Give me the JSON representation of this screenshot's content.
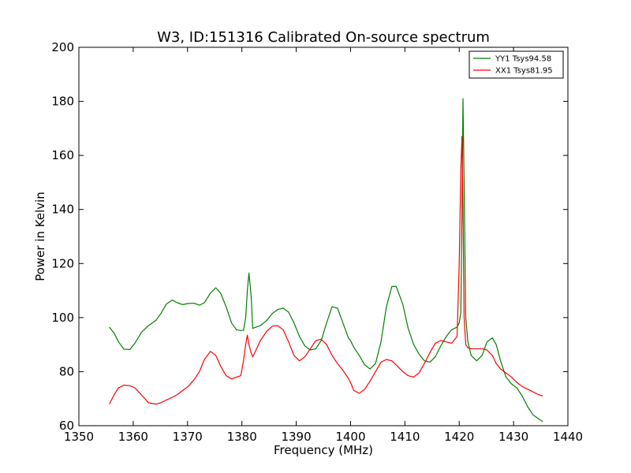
{
  "chart_data": {
    "type": "line",
    "title": "W3, ID:151316 Calibrated On-source spectrum",
    "xlabel": "Frequency (MHz)",
    "ylabel": "Power in Kelvin",
    "xlim": [
      1350,
      1440
    ],
    "ylim": [
      60,
      200
    ],
    "xticks": [
      1350,
      1360,
      1370,
      1380,
      1390,
      1400,
      1410,
      1420,
      1430,
      1440
    ],
    "yticks": [
      60,
      80,
      100,
      120,
      140,
      160,
      180,
      200
    ],
    "xtick_labels": [
      "1350",
      "1360",
      "1370",
      "1380",
      "1390",
      "1400",
      "1410",
      "1420",
      "1430",
      "1440"
    ],
    "ytick_labels": [
      "60",
      "80",
      "100",
      "120",
      "140",
      "160",
      "180",
      "200"
    ],
    "grid": false,
    "legend_position": "top-right",
    "series": [
      {
        "name": "YY1 Tsys94.58",
        "color": "#008000",
        "x": [
          1355.6,
          1356.5,
          1357.3,
          1358.3,
          1359.4,
          1360.3,
          1361.5,
          1362.8,
          1364.2,
          1365.1,
          1366.1,
          1367.2,
          1368.1,
          1369.1,
          1370.1,
          1371.2,
          1372.2,
          1373.1,
          1374.2,
          1375.2,
          1376.1,
          1377.1,
          1378.1,
          1379.0,
          1379.8,
          1380.3,
          1380.7,
          1381.0,
          1381.3,
          1381.7,
          1382.0,
          1382.6,
          1383.4,
          1384.6,
          1385.6,
          1386.6,
          1387.6,
          1388.6,
          1389.6,
          1390.6,
          1391.6,
          1392.6,
          1393.6,
          1394.6,
          1395.6,
          1396.6,
          1397.6,
          1398.6,
          1399.6,
          1400.0,
          1400.6,
          1401.6,
          1402.6,
          1403.6,
          1404.6,
          1405.6,
          1406.6,
          1407.6,
          1408.4,
          1409.6,
          1410.6,
          1411.6,
          1412.6,
          1413.6,
          1414.6,
          1415.6,
          1416.6,
          1417.6,
          1418.6,
          1419.6,
          1420.0,
          1420.3,
          1420.5,
          1420.7,
          1420.9,
          1421.2,
          1421.6,
          1422.2,
          1423.2,
          1424.2,
          1425.1,
          1426.1,
          1426.8,
          1427.6,
          1428.6,
          1429.6,
          1430.6,
          1431.6,
          1432.6,
          1433.6,
          1434.6,
          1435.4
        ],
        "y": [
          96.5,
          94.2,
          91.0,
          88.3,
          88.2,
          90.5,
          94.5,
          97.0,
          99.0,
          101.5,
          105.0,
          106.5,
          105.5,
          104.8,
          105.2,
          105.3,
          104.6,
          105.5,
          109.0,
          111.0,
          109.0,
          104.0,
          98.0,
          95.5,
          95.2,
          95.3,
          100.0,
          110.0,
          116.5,
          108.0,
          96.0,
          96.5,
          97.0,
          99.0,
          101.5,
          103.0,
          103.5,
          102.0,
          98.0,
          93.0,
          89.5,
          88.0,
          88.5,
          91.5,
          98.0,
          104.0,
          103.5,
          98.0,
          92.5,
          91.5,
          89.0,
          86.0,
          82.5,
          81.0,
          83.0,
          91.0,
          104.0,
          111.5,
          111.5,
          105.0,
          96.0,
          90.0,
          86.5,
          84.0,
          83.5,
          85.5,
          89.5,
          93.0,
          95.5,
          96.5,
          98.0,
          102.0,
          140.0,
          181.0,
          150.0,
          100.0,
          91.0,
          86.0,
          84.0,
          86.0,
          91.0,
          92.5,
          90.0,
          84.0,
          78.0,
          75.5,
          74.0,
          71.0,
          67.0,
          64.0,
          62.5,
          61.5
        ]
      },
      {
        "name": "XX1 Tsys81.95",
        "color": "#ff0000",
        "x": [
          1355.6,
          1356.5,
          1357.3,
          1358.3,
          1359.4,
          1360.3,
          1361.5,
          1362.8,
          1364.2,
          1365.1,
          1366.1,
          1367.2,
          1368.1,
          1369.1,
          1370.1,
          1371.2,
          1372.2,
          1373.1,
          1374.2,
          1375.2,
          1376.1,
          1377.1,
          1378.1,
          1379.0,
          1379.8,
          1380.3,
          1380.7,
          1381.0,
          1381.3,
          1381.7,
          1382.0,
          1382.6,
          1383.4,
          1384.6,
          1385.6,
          1386.6,
          1387.6,
          1388.6,
          1389.6,
          1390.6,
          1391.6,
          1392.6,
          1393.6,
          1394.6,
          1395.6,
          1396.6,
          1397.6,
          1398.6,
          1399.6,
          1400.0,
          1400.6,
          1401.6,
          1402.6,
          1403.6,
          1404.6,
          1405.6,
          1406.6,
          1407.6,
          1408.4,
          1409.6,
          1410.6,
          1411.6,
          1412.6,
          1413.6,
          1414.6,
          1415.6,
          1416.6,
          1417.6,
          1418.6,
          1419.6,
          1420.0,
          1420.3,
          1420.5,
          1420.7,
          1420.9,
          1421.2,
          1421.6,
          1422.2,
          1423.2,
          1424.2,
          1425.1,
          1426.1,
          1426.8,
          1427.6,
          1428.6,
          1429.6,
          1430.6,
          1431.6,
          1432.6,
          1433.6,
          1434.6,
          1435.4
        ],
        "y": [
          68.0,
          71.5,
          74.0,
          75.0,
          74.8,
          74.0,
          71.5,
          68.5,
          68.0,
          68.5,
          69.5,
          70.5,
          71.5,
          73.0,
          74.5,
          77.0,
          80.0,
          84.5,
          87.5,
          86.0,
          82.0,
          78.5,
          77.3,
          78.0,
          78.5,
          84.0,
          90.0,
          93.5,
          90.0,
          87.0,
          85.5,
          88.0,
          91.5,
          95.0,
          96.8,
          97.0,
          95.5,
          91.0,
          86.0,
          84.0,
          85.5,
          88.5,
          91.5,
          92.0,
          90.0,
          86.0,
          83.0,
          80.5,
          77.5,
          76.0,
          73.0,
          72.0,
          73.5,
          76.5,
          80.0,
          83.5,
          84.5,
          84.0,
          82.5,
          80.0,
          78.5,
          78.0,
          79.5,
          83.0,
          87.0,
          90.5,
          91.5,
          91.0,
          90.5,
          93.0,
          120.0,
          155.0,
          167.0,
          140.0,
          100.0,
          90.0,
          88.8,
          88.5,
          88.5,
          88.5,
          88.0,
          86.0,
          83.0,
          81.0,
          79.5,
          78.0,
          76.0,
          74.5,
          73.5,
          72.5,
          71.5,
          71.0
        ]
      }
    ]
  }
}
